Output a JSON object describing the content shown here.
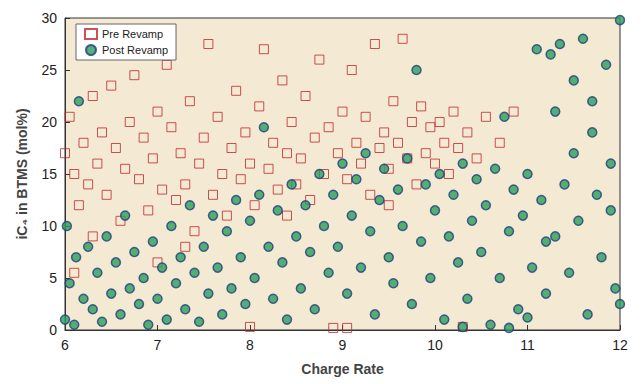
{
  "chart_data": {
    "type": "scatter",
    "x_label": "Charge Rate",
    "y_label": "iC₄ in BTMS (mol%)",
    "xlim": [
      6,
      12
    ],
    "xticks": [
      6,
      7,
      8,
      9,
      10,
      11,
      12
    ],
    "ylim": [
      0,
      30
    ],
    "yticks": [
      0,
      5,
      10,
      15,
      20,
      25,
      30
    ],
    "grid": false,
    "legend": "upper left",
    "series": [
      {
        "name": "Pre Revamp",
        "color": "#c0262d",
        "marker": "open_square",
        "x": [
          6.0,
          6.05,
          6.1,
          6.15,
          6.2,
          6.25,
          6.3,
          6.35,
          6.4,
          6.45,
          6.5,
          6.55,
          6.6,
          6.65,
          6.7,
          6.75,
          6.8,
          6.85,
          6.9,
          6.95,
          7.0,
          7.05,
          7.1,
          7.15,
          7.2,
          7.25,
          7.3,
          7.35,
          7.4,
          7.45,
          7.5,
          7.55,
          7.6,
          7.65,
          7.7,
          7.75,
          7.8,
          7.85,
          7.9,
          7.95,
          8.0,
          8.05,
          8.1,
          8.15,
          8.2,
          8.25,
          8.3,
          8.35,
          8.4,
          8.45,
          8.5,
          8.55,
          8.6,
          8.65,
          8.7,
          8.75,
          8.8,
          8.85,
          8.9,
          8.95,
          9.0,
          9.05,
          9.1,
          9.15,
          9.2,
          9.25,
          9.3,
          9.35,
          9.4,
          9.45,
          9.5,
          9.55,
          9.6,
          9.65,
          9.7,
          9.75,
          9.8,
          9.85,
          9.9,
          9.95,
          10.0,
          10.05,
          10.1,
          10.15,
          10.2,
          10.25,
          10.3,
          10.35,
          10.45,
          10.55,
          10.7,
          10.85,
          6.3,
          7.0,
          8.0,
          9.05,
          6.1,
          7.3,
          8.4,
          9.5
        ],
        "values": [
          17,
          20.5,
          15,
          12,
          18,
          14,
          22.5,
          16,
          19,
          13,
          23.5,
          17.5,
          10.5,
          15.5,
          20,
          24.5,
          14.5,
          18.5,
          11.5,
          16.5,
          21,
          13.5,
          25.5,
          19.5,
          12.5,
          17,
          14,
          22,
          9.5,
          16,
          18.5,
          27.5,
          13,
          20.5,
          15,
          11,
          17.5,
          23,
          14.5,
          19,
          16,
          12,
          21.5,
          27,
          15.5,
          18,
          13.5,
          24,
          17,
          20,
          14,
          16.5,
          22.5,
          12.5,
          18.5,
          26,
          15,
          19.5,
          0.2,
          17,
          21,
          14.5,
          25,
          18,
          16,
          20.5,
          13,
          27.5,
          17.5,
          19,
          15.5,
          22,
          18,
          28,
          16.5,
          20,
          14,
          21.5,
          17,
          19.5,
          16,
          20,
          18,
          15,
          21,
          17.5,
          0.3,
          19,
          16.5,
          20.5,
          18,
          21,
          9,
          6.5,
          0.3,
          0.2,
          5.5,
          8,
          11,
          12
        ]
      },
      {
        "name": "Post Revamp",
        "color": "#2a9d5c",
        "marker": "circle",
        "x": [
          6.0,
          6.02,
          6.05,
          6.1,
          6.12,
          6.15,
          6.2,
          6.25,
          6.3,
          6.35,
          6.4,
          6.45,
          6.5,
          6.55,
          6.6,
          6.65,
          6.7,
          6.75,
          6.8,
          6.85,
          6.9,
          6.95,
          7.0,
          7.05,
          7.1,
          7.15,
          7.2,
          7.25,
          7.3,
          7.35,
          7.4,
          7.45,
          7.5,
          7.55,
          7.6,
          7.65,
          7.7,
          7.75,
          7.8,
          7.85,
          7.9,
          7.95,
          8.0,
          8.05,
          8.1,
          8.15,
          8.2,
          8.25,
          8.3,
          8.35,
          8.4,
          8.45,
          8.5,
          8.55,
          8.6,
          8.65,
          8.7,
          8.75,
          8.8,
          8.85,
          8.9,
          8.95,
          9.0,
          9.05,
          9.1,
          9.15,
          9.2,
          9.25,
          9.3,
          9.35,
          9.4,
          9.45,
          9.5,
          9.55,
          9.6,
          9.65,
          9.7,
          9.75,
          9.8,
          9.85,
          9.9,
          9.95,
          10.0,
          10.05,
          10.1,
          10.15,
          10.2,
          10.25,
          10.3,
          10.35,
          10.4,
          10.45,
          10.5,
          10.55,
          10.6,
          10.65,
          10.7,
          10.75,
          10.8,
          10.85,
          10.9,
          10.95,
          11.0,
          11.05,
          11.1,
          11.15,
          11.2,
          11.25,
          11.3,
          11.35,
          11.4,
          11.45,
          11.5,
          11.55,
          11.6,
          11.65,
          11.7,
          11.75,
          11.8,
          11.85,
          11.9,
          11.95,
          12.0,
          11.5,
          11.7,
          11.3,
          11.9,
          11.2,
          10.3,
          10.8,
          11.0,
          12.0
        ],
        "values": [
          1,
          10,
          4.5,
          0.5,
          7,
          22,
          3,
          8,
          2,
          5.5,
          0.8,
          9,
          3.5,
          6.5,
          1.5,
          11,
          4,
          7.5,
          2.5,
          5,
          0.5,
          8.5,
          3,
          6,
          1,
          10,
          4.5,
          7,
          2,
          12,
          5.5,
          0.8,
          8,
          3.5,
          11,
          6,
          1.5,
          9.5,
          4,
          12.5,
          7,
          2.5,
          10.5,
          5,
          13,
          19.5,
          8,
          3,
          11.5,
          6.5,
          1,
          14,
          9,
          4,
          12,
          7.5,
          2,
          15,
          10,
          5.5,
          13,
          8,
          16,
          3.5,
          11,
          14.5,
          6,
          17,
          9.5,
          1.5,
          12.5,
          15.5,
          7,
          4.5,
          13.5,
          10,
          16.5,
          2.5,
          25,
          8.5,
          14,
          5,
          11.5,
          15,
          1,
          9,
          13,
          6.5,
          16,
          3,
          10.5,
          14.5,
          7.5,
          12,
          0.5,
          15.5,
          5,
          20.5,
          9.5,
          13.5,
          2,
          11,
          15,
          6,
          27,
          12.5,
          3.5,
          26.5,
          9,
          27.5,
          14,
          5.5,
          24,
          10.5,
          28,
          1.5,
          22,
          13,
          7,
          25.5,
          16,
          4,
          29.8,
          17,
          19,
          21,
          11.5,
          8.5,
          0.3,
          0.2,
          1.2,
          2.5
        ]
      }
    ]
  }
}
